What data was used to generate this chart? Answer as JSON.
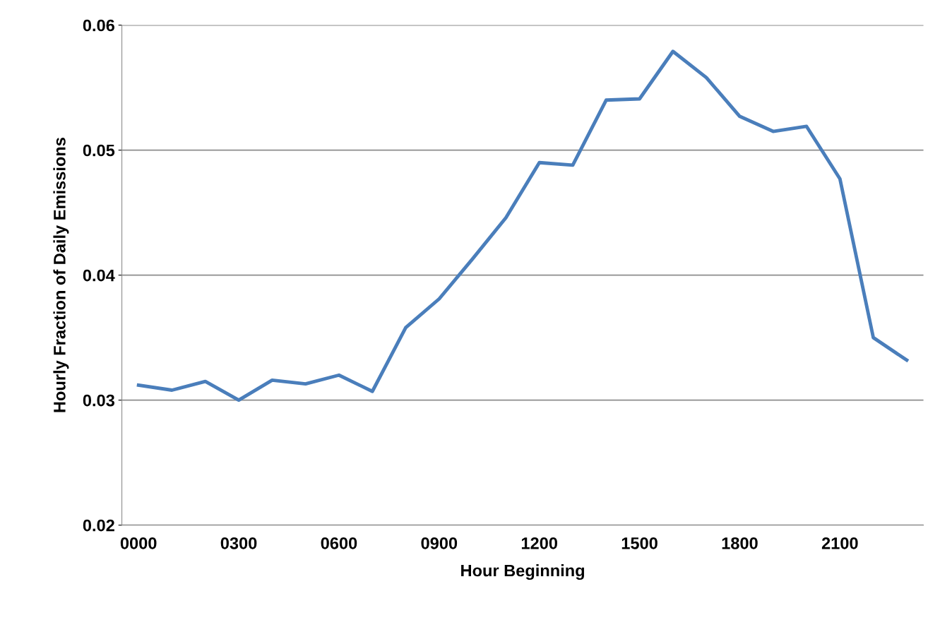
{
  "chart_data": {
    "type": "line",
    "xlabel": "Hour Beginning",
    "ylabel": "Hourly Fraction of Daily Emissions",
    "categories": [
      "0000",
      null,
      null,
      "0300",
      null,
      null,
      "0600",
      null,
      null,
      "0900",
      null,
      null,
      "1200",
      null,
      null,
      "1500",
      null,
      null,
      "1800",
      null,
      null,
      "2100",
      null,
      null
    ],
    "series": [
      {
        "color": "#4a7ebb",
        "values": [
          0.0312,
          0.0308,
          0.0315,
          0.03,
          0.0316,
          0.0313,
          0.032,
          0.0307,
          0.0358,
          0.0381,
          0.0413,
          0.0446,
          0.049,
          0.0488,
          0.054,
          0.0541,
          0.0579,
          0.0558,
          0.0527,
          0.0515,
          0.0519,
          0.0477,
          0.035,
          0.0332
        ]
      }
    ],
    "ylim": [
      0.02,
      0.06
    ],
    "yticks": [
      {
        "value": 0.02,
        "label": "0.02"
      },
      {
        "value": 0.03,
        "label": "0.03"
      },
      {
        "value": 0.04,
        "label": "0.04"
      },
      {
        "value": 0.05,
        "label": "0.05"
      },
      {
        "value": 0.06,
        "label": "0.06"
      }
    ],
    "grid": "y",
    "legend": false,
    "marker": "none",
    "line_style": "solid"
  }
}
